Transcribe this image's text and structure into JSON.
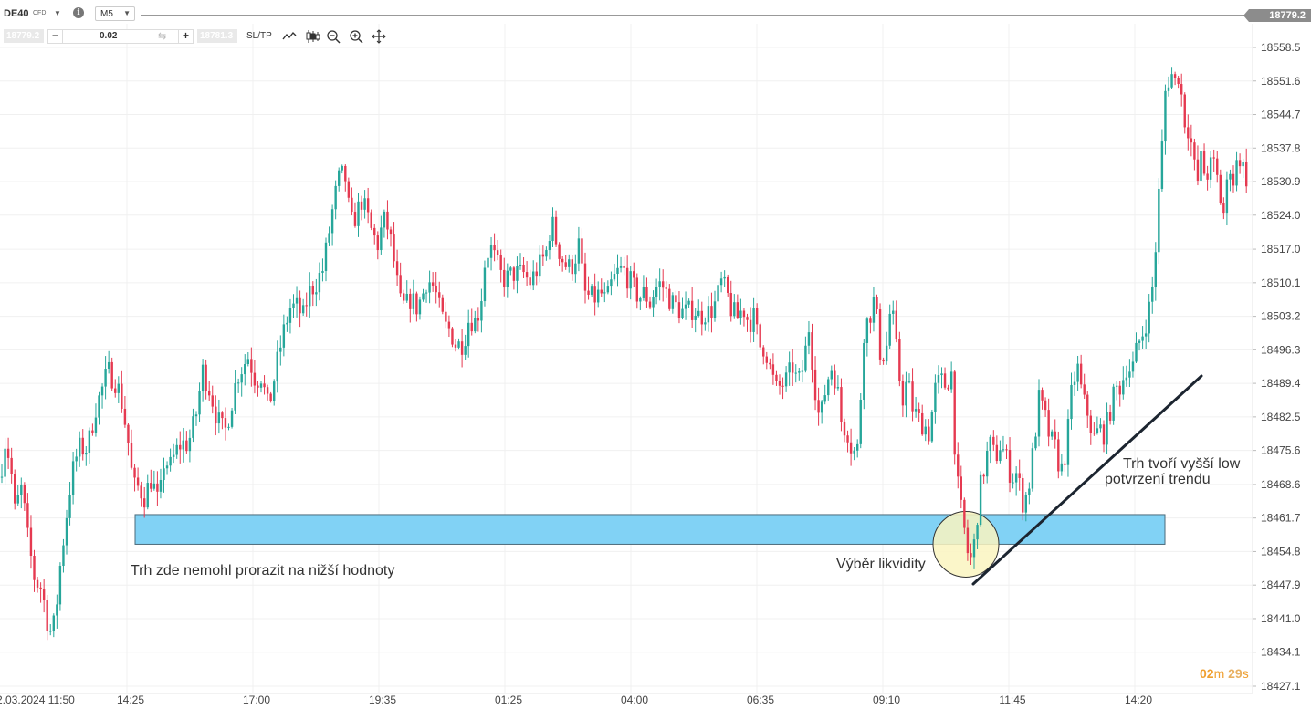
{
  "toolbar": {
    "symbol": "DE40",
    "instrument_type": "CFD",
    "timeframe": "M5",
    "current_price": "18779.2"
  },
  "order_bar": {
    "sell_price": "18779.2",
    "volume": "0.02",
    "buy_price": "18781.3",
    "sltp_label": "SL/TP"
  },
  "colors": {
    "up_candle": "#26a69a",
    "down_candle": "#e53950",
    "zone_fill": "#81d2f5",
    "zone_border": "#4a6a7a",
    "highlight_fill": "#faf4c0",
    "trend_line": "#1c2530",
    "grid": "#f0f0f0"
  },
  "chart_data": {
    "type": "candlestick",
    "y_ticks": [
      "18558.5",
      "18551.6",
      "18544.7",
      "18537.8",
      "18530.9",
      "18524.0",
      "18517.0",
      "18510.1",
      "18503.2",
      "18496.3",
      "18489.4",
      "18482.5",
      "18475.6",
      "18468.6",
      "18461.7",
      "18454.8",
      "18447.9",
      "18441.0",
      "18434.1",
      "18427.1"
    ],
    "x_ticks": [
      "2.03.2024 11:50",
      "14:25",
      "17:00",
      "19:35",
      "01:25",
      "04:00",
      "06:35",
      "09:10",
      "11:45",
      "14:20"
    ],
    "ylim": [
      18425.0,
      18562.0
    ],
    "price_path": [
      [
        0,
        18470
      ],
      [
        6,
        18478
      ],
      [
        12,
        18472
      ],
      [
        16,
        18463
      ],
      [
        24,
        18468
      ],
      [
        30,
        18458
      ],
      [
        38,
        18449
      ],
      [
        46,
        18447
      ],
      [
        54,
        18438
      ],
      [
        60,
        18440
      ],
      [
        66,
        18452
      ],
      [
        72,
        18461
      ],
      [
        78,
        18470
      ],
      [
        86,
        18476
      ],
      [
        96,
        18476
      ],
      [
        104,
        18484
      ],
      [
        110,
        18487
      ],
      [
        118,
        18492
      ],
      [
        126,
        18490
      ],
      [
        132,
        18487
      ],
      [
        140,
        18478
      ],
      [
        146,
        18468
      ],
      [
        152,
        18468
      ],
      [
        158,
        18466
      ],
      [
        166,
        18470
      ],
      [
        174,
        18464
      ],
      [
        180,
        18474
      ],
      [
        186,
        18472
      ],
      [
        192,
        18475
      ],
      [
        198,
        18477
      ],
      [
        206,
        18477
      ],
      [
        214,
        18482
      ],
      [
        222,
        18492
      ],
      [
        230,
        18488
      ],
      [
        238,
        18482
      ],
      [
        246,
        18479
      ],
      [
        252,
        18484
      ],
      [
        260,
        18491
      ],
      [
        266,
        18493
      ],
      [
        272,
        18495
      ],
      [
        280,
        18490
      ],
      [
        286,
        18491
      ],
      [
        294,
        18484
      ],
      [
        300,
        18490
      ],
      [
        306,
        18496
      ],
      [
        312,
        18501
      ],
      [
        318,
        18505
      ],
      [
        326,
        18505
      ],
      [
        332,
        18503
      ],
      [
        338,
        18508
      ],
      [
        346,
        18510
      ],
      [
        354,
        18513
      ],
      [
        360,
        18520
      ],
      [
        366,
        18527
      ],
      [
        372,
        18532
      ],
      [
        378,
        18532
      ],
      [
        384,
        18522
      ],
      [
        390,
        18524
      ],
      [
        396,
        18527
      ],
      [
        402,
        18524
      ],
      [
        408,
        18520
      ],
      [
        414,
        18518
      ],
      [
        420,
        18523
      ],
      [
        426,
        18521
      ],
      [
        432,
        18514
      ],
      [
        438,
        18506
      ],
      [
        444,
        18505
      ],
      [
        450,
        18507
      ],
      [
        456,
        18505
      ],
      [
        462,
        18507
      ],
      [
        468,
        18511
      ],
      [
        476,
        18509
      ],
      [
        482,
        18504
      ],
      [
        488,
        18501
      ],
      [
        494,
        18500
      ],
      [
        500,
        18497
      ],
      [
        508,
        18498
      ],
      [
        514,
        18503
      ],
      [
        520,
        18502
      ],
      [
        526,
        18505
      ],
      [
        532,
        18516
      ],
      [
        538,
        18517
      ],
      [
        544,
        18514
      ],
      [
        550,
        18511
      ],
      [
        556,
        18511
      ],
      [
        562,
        18512
      ],
      [
        568,
        18512
      ],
      [
        574,
        18512
      ],
      [
        580,
        18510
      ],
      [
        586,
        18512
      ],
      [
        592,
        18514
      ],
      [
        598,
        18516
      ],
      [
        604,
        18523
      ],
      [
        610,
        18518
      ],
      [
        616,
        18515
      ],
      [
        622,
        18513
      ],
      [
        628,
        18514
      ],
      [
        634,
        18518
      ],
      [
        640,
        18508
      ],
      [
        646,
        18507
      ],
      [
        652,
        18507
      ],
      [
        658,
        18508
      ],
      [
        664,
        18506
      ],
      [
        670,
        18510
      ],
      [
        676,
        18512
      ],
      [
        682,
        18513
      ],
      [
        688,
        18511
      ],
      [
        694,
        18509
      ],
      [
        700,
        18507
      ],
      [
        706,
        18508
      ],
      [
        712,
        18506
      ],
      [
        718,
        18509
      ],
      [
        724,
        18510
      ],
      [
        730,
        18508
      ],
      [
        736,
        18506
      ],
      [
        742,
        18505
      ],
      [
        748,
        18504
      ],
      [
        754,
        18504
      ],
      [
        760,
        18505
      ],
      [
        766,
        18503
      ],
      [
        772,
        18504
      ],
      [
        778,
        18504
      ],
      [
        784,
        18506
      ],
      [
        790,
        18510
      ],
      [
        796,
        18508
      ],
      [
        802,
        18504
      ],
      [
        808,
        18503
      ],
      [
        814,
        18505
      ],
      [
        820,
        18502
      ],
      [
        826,
        18503
      ],
      [
        832,
        18497
      ],
      [
        838,
        18497
      ],
      [
        844,
        18492
      ],
      [
        850,
        18488
      ],
      [
        856,
        18489
      ],
      [
        862,
        18490
      ],
      [
        868,
        18493
      ],
      [
        874,
        18489
      ],
      [
        880,
        18493
      ],
      [
        886,
        18501
      ],
      [
        892,
        18490
      ],
      [
        898,
        18481
      ],
      [
        904,
        18488
      ],
      [
        910,
        18493
      ],
      [
        916,
        18490
      ],
      [
        922,
        18481
      ],
      [
        928,
        18480
      ],
      [
        934,
        18475
      ],
      [
        940,
        18476
      ],
      [
        946,
        18500
      ],
      [
        952,
        18503
      ],
      [
        958,
        18507
      ],
      [
        964,
        18496
      ],
      [
        970,
        18495
      ],
      [
        976,
        18506
      ],
      [
        982,
        18496
      ],
      [
        988,
        18486
      ],
      [
        994,
        18490
      ],
      [
        1000,
        18484
      ],
      [
        1006,
        18482
      ],
      [
        1012,
        18481
      ],
      [
        1018,
        18479
      ],
      [
        1024,
        18488
      ],
      [
        1030,
        18490
      ],
      [
        1036,
        18489
      ],
      [
        1042,
        18492
      ],
      [
        1046,
        18476
      ],
      [
        1050,
        18466
      ],
      [
        1054,
        18462
      ],
      [
        1058,
        18457
      ],
      [
        1062,
        18452
      ],
      [
        1068,
        18457
      ],
      [
        1072,
        18466
      ],
      [
        1078,
        18472
      ],
      [
        1084,
        18477
      ],
      [
        1090,
        18474
      ],
      [
        1096,
        18477
      ],
      [
        1102,
        18474
      ],
      [
        1108,
        18470
      ],
      [
        1114,
        18471
      ],
      [
        1120,
        18465
      ],
      [
        1126,
        18467
      ],
      [
        1132,
        18476
      ],
      [
        1138,
        18486
      ],
      [
        1144,
        18483
      ],
      [
        1150,
        18478
      ],
      [
        1156,
        18476
      ],
      [
        1162,
        18471
      ],
      [
        1168,
        18476
      ],
      [
        1174,
        18488
      ],
      [
        1180,
        18493
      ],
      [
        1186,
        18486
      ],
      [
        1192,
        18483
      ],
      [
        1198,
        18478
      ],
      [
        1204,
        18480
      ],
      [
        1210,
        18479
      ],
      [
        1216,
        18484
      ],
      [
        1222,
        18488
      ],
      [
        1228,
        18489
      ],
      [
        1234,
        18493
      ],
      [
        1240,
        18492
      ],
      [
        1246,
        18497
      ],
      [
        1252,
        18500
      ],
      [
        1258,
        18504
      ],
      [
        1264,
        18511
      ],
      [
        1268,
        18525
      ],
      [
        1272,
        18535
      ],
      [
        1276,
        18549
      ],
      [
        1280,
        18552
      ],
      [
        1284,
        18553
      ],
      [
        1288,
        18551
      ],
      [
        1292,
        18554
      ],
      [
        1296,
        18544
      ],
      [
        1300,
        18543
      ],
      [
        1304,
        18540
      ],
      [
        1308,
        18534
      ],
      [
        1312,
        18531
      ],
      [
        1316,
        18536
      ],
      [
        1320,
        18532
      ],
      [
        1324,
        18533
      ],
      [
        1328,
        18535
      ],
      [
        1332,
        18533
      ],
      [
        1336,
        18528
      ],
      [
        1340,
        18524
      ],
      [
        1344,
        18530
      ],
      [
        1348,
        18535
      ],
      [
        1352,
        18530
      ],
      [
        1356,
        18537
      ],
      [
        1360,
        18535
      ],
      [
        1364,
        18532
      ],
      [
        1368,
        18531
      ]
    ]
  },
  "annotations": {
    "zone_note": "Trh zde nemohl prorazit na nižší hodnoty",
    "liquidity_note": "Výběr likvidity",
    "higher_low_line1": "Trh tvoří vyšší low",
    "higher_low_line2": "potvrzení trendu"
  },
  "countdown": {
    "minutes": "02",
    "minutes_unit": "m",
    "seconds": "29",
    "seconds_unit": "s"
  }
}
